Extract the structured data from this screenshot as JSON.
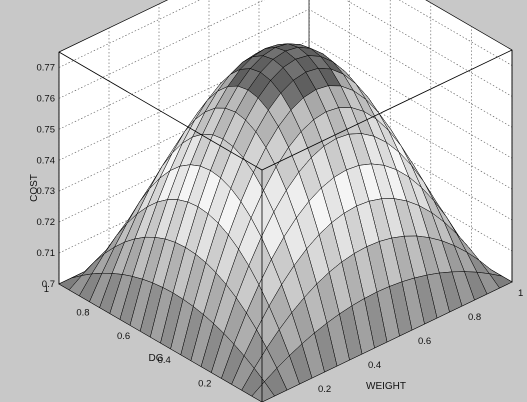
{
  "chart_data": {
    "type": "surface",
    "title": "",
    "xlabel": "WEIGHT",
    "ylabel": "DG",
    "zlabel": "COST",
    "xlim": [
      0,
      1
    ],
    "ylim": [
      0,
      1
    ],
    "zlim": [
      0.7,
      0.775
    ],
    "xticks": [
      "0",
      "0.2",
      "0.4",
      "0.6",
      "0.8",
      "1"
    ],
    "yticks": [
      "0",
      "0.2",
      "0.4",
      "0.6",
      "0.8",
      "1"
    ],
    "zticks": [
      "0.7",
      "0.71",
      "0.72",
      "0.73",
      "0.74",
      "0.75",
      "0.76",
      "0.77"
    ],
    "grid": true,
    "colormap": "gray",
    "surface": {
      "grid_points": 20,
      "range": [
        0,
        1
      ],
      "model": "cost = zmin + 0.0775 * (1 - (2*weight-1)^2) * (1 - (2*dg-1)^2), clamped to zlim",
      "peak": {
        "weight": 0.5,
        "dg": 0.5,
        "cost": 0.775
      },
      "boundary_cost": 0.7
    }
  }
}
